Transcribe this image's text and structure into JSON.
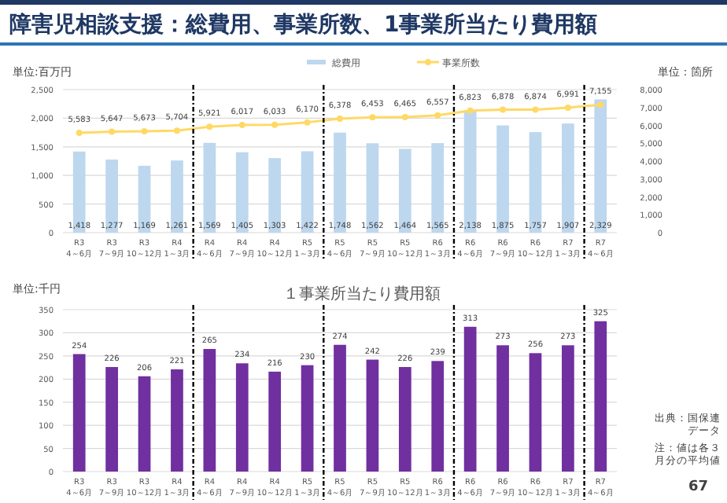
{
  "chart_data": [
    {
      "type": "bar",
      "title": "障害児相談支援：総費用、事業所数、1事業所当たり費用額",
      "ylabel": "単位:百万円",
      "y2label": "単位：箇所",
      "categories": [
        "R3\n4～6月",
        "R3\n7～9月",
        "R3\n10～12月",
        "R4\n1～3月",
        "R4\n4～6月",
        "R4\n7～9月",
        "R4\n10～12月",
        "R5\n1～3月",
        "R5\n4～6月",
        "R5\n7～9月",
        "R5\n10～12月",
        "R6\n1～3月",
        "R6\n4～6月",
        "R6\n7～9月",
        "R6\n10～12月",
        "R7\n1～3月",
        "R7\n4～6月"
      ],
      "series": [
        {
          "name": "総費用",
          "color": "#bdd7ee",
          "values": [
            1418,
            1277,
            1169,
            1261,
            1569,
            1405,
            1303,
            1422,
            1748,
            1562,
            1464,
            1565,
            2138,
            1875,
            1757,
            1907,
            2329
          ],
          "value_labels": [
            "1,418",
            "1,277",
            "1,169",
            "1,261",
            "1,569",
            "1,405",
            "1,303",
            "1,422",
            "1,748",
            "1,562",
            "1,464",
            "1,565",
            "2,138",
            "1,875",
            "1,757",
            "1,907",
            "2,329"
          ]
        },
        {
          "name": "事業所数",
          "type": "line",
          "axis": "y2",
          "color": "#ffd966",
          "values": [
            5583,
            5647,
            5673,
            5704,
            5921,
            6017,
            6033,
            6170,
            6378,
            6453,
            6465,
            6557,
            6823,
            6878,
            6874,
            6991,
            7155
          ],
          "value_labels": [
            "5,583",
            "5,647",
            "5,673",
            "5,704",
            "5,921",
            "6,017",
            "6,033",
            "6,170",
            "6,378",
            "6,453",
            "6,465",
            "6,557",
            "6,823",
            "6,878",
            "6,874",
            "6,991",
            "7,155"
          ]
        }
      ],
      "marker": "circle",
      "ylim": [
        0,
        2500
      ],
      "yticks": [
        0,
        {
          "value": 500,
          "label": "500"
        },
        {
          "value": 1000,
          "label": "1,000"
        },
        {
          "value": 1500,
          "label": "1,500"
        },
        {
          "value": 2000,
          "label": "2,000"
        },
        {
          "value": 2500,
          "label": "2,500"
        }
      ],
      "y2lim": [
        0,
        8000
      ],
      "y2ticks": [
        0,
        {
          "value": 1000,
          "label": "1,000"
        },
        {
          "value": 2000,
          "label": "2,000"
        },
        {
          "value": 3000,
          "label": "3,000"
        },
        {
          "value": 4000,
          "label": "4,000"
        },
        {
          "value": 5000,
          "label": "5,000"
        },
        {
          "value": 6000,
          "label": "6,000"
        },
        {
          "value": 7000,
          "label": "7,000"
        },
        {
          "value": 8000,
          "label": "8,000"
        }
      ],
      "grid": "y",
      "legend": "top"
    },
    {
      "type": "bar",
      "title": "１事業所当たり費用額",
      "ylabel": "単位:千円",
      "categories": [
        "R3\n4～6月",
        "R3\n7～9月",
        "R3\n10～12月",
        "R4\n1～3月",
        "R4\n4～6月",
        "R4\n7～9月",
        "R4\n10～12月",
        "R5\n1～3月",
        "R5\n4～6月",
        "R5\n7～9月",
        "R5\n10～12月",
        "R6\n1～3月",
        "R6\n4～6月",
        "R6\n7～9月",
        "R6\n10～12月",
        "R7\n1～3月",
        "R7\n4～6月"
      ],
      "series": [
        {
          "color": "#7030a0",
          "values": [
            254,
            226,
            206,
            221,
            265,
            234,
            216,
            230,
            274,
            242,
            226,
            239,
            313,
            273,
            256,
            273,
            325
          ]
        }
      ],
      "ylim": [
        0,
        350
      ],
      "yticks": [
        0,
        50,
        100,
        150,
        200,
        250,
        300,
        350
      ],
      "grid": "y",
      "data_labels": true,
      "annotations": [
        "出典：国保連データ",
        "注：値は各３月分の平均値",
        "67"
      ]
    }
  ]
}
